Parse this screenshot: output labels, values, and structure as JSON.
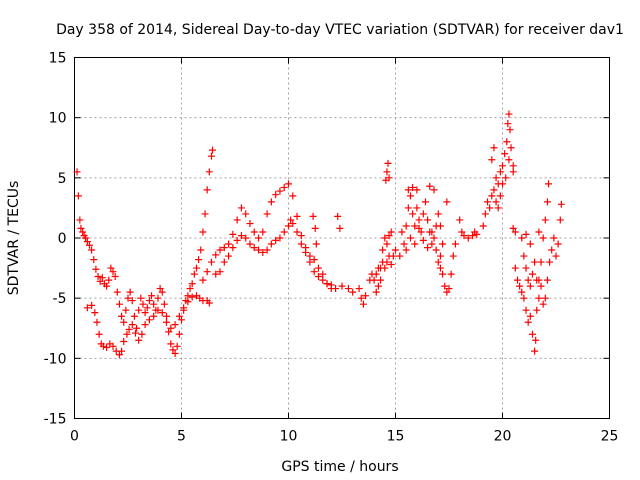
{
  "chart_data": {
    "type": "scatter",
    "title": "Day 358 of 2014, Sidereal Day-to-day VTEC variation (SDTVAR) for receiver dav1",
    "xlabel": "GPS time / hours",
    "ylabel": "SDTVAR / TECUs",
    "xlim": [
      0,
      25
    ],
    "ylim": [
      -15,
      15
    ],
    "xticks": [
      "0",
      "5",
      "10",
      "15",
      "20",
      "25"
    ],
    "yticks": [
      "-15",
      "-10",
      "-5",
      "0",
      "5",
      "10",
      "15"
    ],
    "grid": true,
    "marker": "+",
    "color": "#ff0000",
    "series": [
      {
        "name": "dav1",
        "points": [
          [
            0.12,
            5.5
          ],
          [
            0.18,
            3.5
          ],
          [
            0.25,
            1.5
          ],
          [
            0.3,
            0.8
          ],
          [
            0.38,
            0.5
          ],
          [
            0.45,
            0.2
          ],
          [
            0.52,
            0.0
          ],
          [
            0.6,
            -0.3
          ],
          [
            0.7,
            -0.6
          ],
          [
            0.8,
            -1.0
          ],
          [
            0.9,
            -1.8
          ],
          [
            1.0,
            -2.6
          ],
          [
            1.1,
            -3.2
          ],
          [
            1.2,
            -3.6
          ],
          [
            1.3,
            -3.3
          ],
          [
            1.4,
            -3.8
          ],
          [
            1.5,
            -4.0
          ],
          [
            1.6,
            -3.5
          ],
          [
            1.7,
            -2.5
          ],
          [
            1.8,
            -2.8
          ],
          [
            1.9,
            -3.2
          ],
          [
            2.0,
            -4.5
          ],
          [
            2.1,
            -5.5
          ],
          [
            2.2,
            -6.5
          ],
          [
            2.3,
            -7.0
          ],
          [
            2.4,
            -6.0
          ],
          [
            2.5,
            -5.0
          ],
          [
            2.6,
            -4.5
          ],
          [
            2.7,
            -5.2
          ],
          [
            2.8,
            -6.5
          ],
          [
            2.9,
            -7.5
          ],
          [
            3.0,
            -6.0
          ],
          [
            3.1,
            -5.0
          ],
          [
            3.2,
            -5.5
          ],
          [
            3.3,
            -6.2
          ],
          [
            3.4,
            -5.8
          ],
          [
            3.5,
            -5.2
          ],
          [
            3.6,
            -4.8
          ],
          [
            3.7,
            -5.5
          ],
          [
            3.8,
            -6.0
          ],
          [
            3.9,
            -5.0
          ],
          [
            4.0,
            -4.2
          ],
          [
            4.1,
            -4.5
          ],
          [
            4.2,
            -5.5
          ],
          [
            4.3,
            -6.5
          ],
          [
            4.4,
            -7.8
          ],
          [
            4.5,
            -8.8
          ],
          [
            4.6,
            -9.3
          ],
          [
            4.7,
            -9.6
          ],
          [
            4.8,
            -9.0
          ],
          [
            4.9,
            -8.0
          ],
          [
            5.0,
            -6.8
          ],
          [
            5.1,
            -6.0
          ],
          [
            5.2,
            -5.2
          ],
          [
            5.3,
            -4.8
          ],
          [
            5.4,
            -4.2
          ],
          [
            5.5,
            -3.8
          ],
          [
            5.6,
            -3.0
          ],
          [
            5.7,
            -2.5
          ],
          [
            5.8,
            -1.8
          ],
          [
            5.9,
            -1.0
          ],
          [
            6.0,
            0.5
          ],
          [
            6.1,
            2.0
          ],
          [
            6.2,
            4.0
          ],
          [
            6.3,
            5.5
          ],
          [
            6.4,
            6.8
          ],
          [
            6.45,
            7.3
          ],
          [
            0.6,
            -5.8
          ],
          [
            0.8,
            -5.6
          ],
          [
            0.95,
            -6.2
          ],
          [
            1.05,
            -7.0
          ],
          [
            1.15,
            -8.0
          ],
          [
            1.25,
            -8.8
          ],
          [
            1.35,
            -9.0
          ],
          [
            1.5,
            -9.1
          ],
          [
            1.65,
            -8.8
          ],
          [
            1.8,
            -9.0
          ],
          [
            1.95,
            -9.4
          ],
          [
            2.1,
            -9.7
          ],
          [
            2.2,
            -9.4
          ],
          [
            2.3,
            -8.6
          ],
          [
            2.45,
            -8.0
          ],
          [
            2.55,
            -7.6
          ],
          [
            2.7,
            -7.2
          ],
          [
            2.85,
            -7.9
          ],
          [
            3.0,
            -8.5
          ],
          [
            3.15,
            -8.0
          ],
          [
            3.3,
            -7.2
          ],
          [
            3.5,
            -6.8
          ],
          [
            3.7,
            -6.5
          ],
          [
            3.9,
            -6.0
          ],
          [
            4.1,
            -6.2
          ],
          [
            4.3,
            -7.0
          ],
          [
            4.5,
            -7.5
          ],
          [
            4.7,
            -7.2
          ],
          [
            4.9,
            -6.5
          ],
          [
            5.1,
            -5.8
          ],
          [
            5.3,
            -5.3
          ],
          [
            5.5,
            -4.9
          ],
          [
            5.7,
            -4.8
          ],
          [
            5.85,
            -5.0
          ],
          [
            6.0,
            -5.2
          ],
          [
            6.2,
            -5.2
          ],
          [
            6.3,
            -5.4
          ],
          [
            6.0,
            -3.5
          ],
          [
            6.2,
            -2.8
          ],
          [
            6.4,
            -2.0
          ],
          [
            6.6,
            -1.4
          ],
          [
            6.8,
            -1.0
          ],
          [
            7.0,
            -0.8
          ],
          [
            7.2,
            -0.5
          ],
          [
            7.4,
            0.3
          ],
          [
            7.6,
            1.5
          ],
          [
            7.8,
            2.5
          ],
          [
            8.0,
            2.0
          ],
          [
            8.2,
            1.2
          ],
          [
            8.4,
            0.5
          ],
          [
            8.6,
            0.0
          ],
          [
            8.8,
            0.5
          ],
          [
            9.0,
            2.0
          ],
          [
            9.2,
            3.0
          ],
          [
            9.4,
            3.6
          ],
          [
            9.6,
            3.9
          ],
          [
            9.8,
            4.2
          ],
          [
            10.0,
            4.5
          ],
          [
            10.2,
            3.5
          ],
          [
            10.4,
            1.8
          ],
          [
            10.6,
            0.2
          ],
          [
            10.8,
            -0.8
          ],
          [
            11.0,
            -1.5
          ],
          [
            11.2,
            -1.8
          ],
          [
            11.4,
            -2.5
          ],
          [
            11.6,
            -3.0
          ],
          [
            11.8,
            -3.8
          ],
          [
            12.0,
            -4.2
          ],
          [
            12.2,
            -4.2
          ],
          [
            12.5,
            -4.0
          ],
          [
            12.8,
            -4.2
          ],
          [
            13.0,
            -4.5
          ],
          [
            6.6,
            -3.0
          ],
          [
            6.8,
            -2.8
          ],
          [
            7.0,
            -2.0
          ],
          [
            7.2,
            -1.5
          ],
          [
            7.4,
            -0.8
          ],
          [
            7.6,
            -0.2
          ],
          [
            7.8,
            0.2
          ],
          [
            8.0,
            0.0
          ],
          [
            8.2,
            -0.5
          ],
          [
            8.4,
            -0.8
          ],
          [
            8.6,
            -1.0
          ],
          [
            8.8,
            -1.2
          ],
          [
            9.0,
            -1.0
          ],
          [
            9.2,
            -0.5
          ],
          [
            9.4,
            -0.2
          ],
          [
            9.6,
            0.0
          ],
          [
            9.8,
            0.5
          ],
          [
            10.0,
            1.0
          ],
          [
            10.1,
            1.5
          ],
          [
            10.2,
            1.2
          ],
          [
            10.4,
            0.5
          ],
          [
            10.6,
            -0.5
          ],
          [
            10.8,
            -1.2
          ],
          [
            11.0,
            -2.0
          ],
          [
            11.2,
            -2.8
          ],
          [
            11.4,
            -3.2
          ],
          [
            11.6,
            -3.5
          ],
          [
            11.8,
            -3.8
          ],
          [
            12.0,
            -3.9
          ],
          [
            11.15,
            1.8
          ],
          [
            11.25,
            0.8
          ],
          [
            11.3,
            -0.5
          ],
          [
            12.3,
            1.8
          ],
          [
            12.4,
            0.8
          ],
          [
            13.3,
            -4.2
          ],
          [
            13.4,
            -5.0
          ],
          [
            13.5,
            -5.5
          ],
          [
            13.6,
            -4.8
          ],
          [
            13.8,
            -3.5
          ],
          [
            13.9,
            -3.0
          ],
          [
            14.0,
            -3.5
          ],
          [
            14.1,
            -3.0
          ],
          [
            14.2,
            -2.5
          ],
          [
            14.3,
            -3.5
          ],
          [
            14.4,
            -2.0
          ],
          [
            14.5,
            -2.5
          ],
          [
            14.6,
            -2.0
          ],
          [
            14.7,
            -1.5
          ],
          [
            14.8,
            -2.2
          ],
          [
            14.9,
            -1.5
          ],
          [
            15.0,
            -1.0
          ],
          [
            14.55,
            4.8
          ],
          [
            14.6,
            5.5
          ],
          [
            14.65,
            6.2
          ],
          [
            14.7,
            5.0
          ],
          [
            14.1,
            -4.5
          ],
          [
            14.2,
            -4.0
          ],
          [
            14.3,
            -2.5
          ],
          [
            14.4,
            -1.0
          ],
          [
            14.5,
            0.0
          ],
          [
            14.6,
            -0.5
          ],
          [
            14.7,
            0.2
          ],
          [
            14.8,
            0.5
          ],
          [
            15.2,
            -1.5
          ],
          [
            15.4,
            -0.5
          ],
          [
            15.5,
            1.0
          ],
          [
            15.6,
            2.5
          ],
          [
            15.7,
            3.5
          ],
          [
            15.8,
            2.0
          ],
          [
            15.9,
            1.0
          ],
          [
            16.0,
            2.5
          ],
          [
            16.1,
            1.5
          ],
          [
            16.2,
            0.5
          ],
          [
            16.3,
            2.0
          ],
          [
            16.4,
            3.0
          ],
          [
            16.5,
            1.5
          ],
          [
            16.6,
            0.5
          ],
          [
            16.7,
            -0.5
          ],
          [
            16.8,
            0.0
          ],
          [
            16.9,
            1.0
          ],
          [
            17.0,
            2.0
          ],
          [
            17.1,
            1.0
          ],
          [
            17.2,
            -0.5
          ],
          [
            15.3,
            0.5
          ],
          [
            15.5,
            -1.0
          ],
          [
            15.7,
            0.0
          ],
          [
            15.9,
            -0.5
          ],
          [
            16.1,
            0.8
          ],
          [
            16.3,
            -0.2
          ],
          [
            16.5,
            -0.8
          ],
          [
            16.7,
            0.5
          ],
          [
            16.9,
            -1.0
          ],
          [
            17.1,
            -1.5
          ],
          [
            15.6,
            4.0
          ],
          [
            15.8,
            4.2
          ],
          [
            16.0,
            4.0
          ],
          [
            16.6,
            4.3
          ],
          [
            16.8,
            4.0
          ],
          [
            17.4,
            3.0
          ],
          [
            17.0,
            -2.0
          ],
          [
            17.1,
            -2.5
          ],
          [
            17.2,
            -3.0
          ],
          [
            17.3,
            -4.0
          ],
          [
            17.4,
            -4.5
          ],
          [
            17.5,
            -4.2
          ],
          [
            17.6,
            -3.0
          ],
          [
            17.7,
            -1.5
          ],
          [
            17.8,
            -0.5
          ],
          [
            18.0,
            1.5
          ],
          [
            18.1,
            0.5
          ],
          [
            18.2,
            0.2
          ],
          [
            18.4,
            0.0
          ],
          [
            18.6,
            0.2
          ],
          [
            18.7,
            0.5
          ],
          [
            18.8,
            0.3
          ],
          [
            19.1,
            1.0
          ],
          [
            19.2,
            2.0
          ],
          [
            19.3,
            3.0
          ],
          [
            19.4,
            2.5
          ],
          [
            19.5,
            3.5
          ],
          [
            19.6,
            4.0
          ],
          [
            19.7,
            3.0
          ],
          [
            19.8,
            4.5
          ],
          [
            19.9,
            5.5
          ],
          [
            20.0,
            6.0
          ],
          [
            20.1,
            7.0
          ],
          [
            20.2,
            8.0
          ],
          [
            20.25,
            9.5
          ],
          [
            20.3,
            10.3
          ],
          [
            20.35,
            9.0
          ],
          [
            20.4,
            7.5
          ],
          [
            20.5,
            6.0
          ],
          [
            19.5,
            6.5
          ],
          [
            19.6,
            7.5
          ],
          [
            19.7,
            5.0
          ],
          [
            19.8,
            2.5
          ],
          [
            19.9,
            3.5
          ],
          [
            20.0,
            4.5
          ],
          [
            20.15,
            5.0
          ],
          [
            20.3,
            6.5
          ],
          [
            20.5,
            5.5
          ],
          [
            20.6,
            -2.5
          ],
          [
            20.7,
            -3.5
          ],
          [
            20.8,
            -4.0
          ],
          [
            20.9,
            -4.5
          ],
          [
            21.0,
            -5.0
          ],
          [
            21.1,
            -6.0
          ],
          [
            21.2,
            -7.0
          ],
          [
            21.3,
            -6.5
          ],
          [
            21.4,
            -8.0
          ],
          [
            21.5,
            -9.4
          ],
          [
            21.55,
            -8.5
          ],
          [
            21.6,
            -6.0
          ],
          [
            21.7,
            -3.5
          ],
          [
            21.8,
            -2.0
          ],
          [
            21.9,
            0.0
          ],
          [
            22.0,
            1.5
          ],
          [
            22.1,
            3.0
          ],
          [
            22.15,
            4.5
          ],
          [
            20.9,
            0.0
          ],
          [
            21.0,
            -1.5
          ],
          [
            21.1,
            -2.5
          ],
          [
            21.2,
            -3.5
          ],
          [
            21.3,
            -4.0
          ],
          [
            21.4,
            -3.0
          ],
          [
            21.5,
            -2.0
          ],
          [
            21.6,
            -3.5
          ],
          [
            21.7,
            -5.0
          ],
          [
            21.8,
            -4.0
          ],
          [
            21.9,
            -5.5
          ],
          [
            22.0,
            -5.0
          ],
          [
            22.1,
            -3.5
          ],
          [
            22.2,
            -2.0
          ],
          [
            22.3,
            -1.0
          ],
          [
            22.4,
            0.0
          ],
          [
            22.5,
            -1.5
          ],
          [
            22.6,
            -0.5
          ],
          [
            22.7,
            1.5
          ],
          [
            22.75,
            2.8
          ],
          [
            20.5,
            0.8
          ],
          [
            20.6,
            0.5
          ],
          [
            21.1,
            0.3
          ],
          [
            21.3,
            -0.5
          ],
          [
            21.7,
            0.5
          ]
        ]
      }
    ]
  }
}
